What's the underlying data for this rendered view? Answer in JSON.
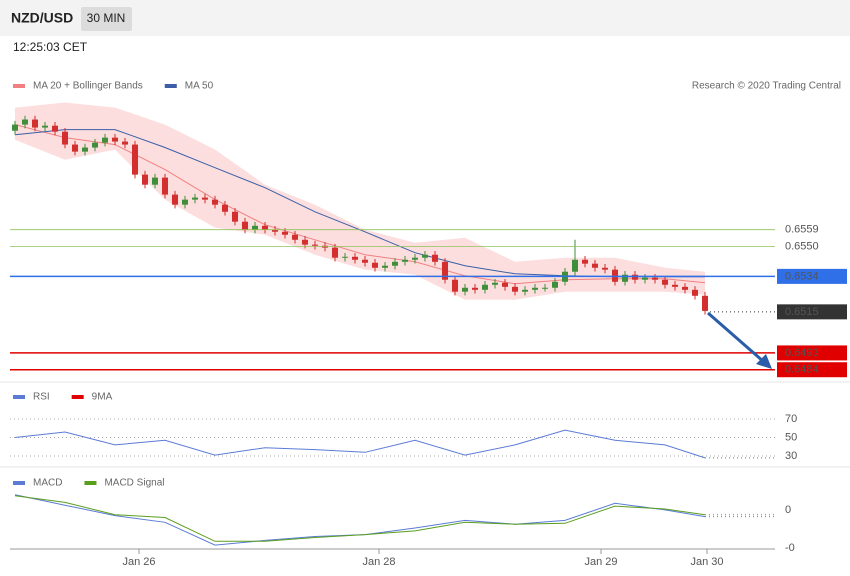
{
  "header": {
    "title": "NZD/USD",
    "timeframe": "30 MIN",
    "time": "12:25:03 CET",
    "source": "Research © 2020 Trading Central"
  },
  "chart_data": [
    {
      "type": "candlestick",
      "xlim": [
        -0.5,
        76
      ],
      "ylim": [
        0.64785,
        0.6629
      ],
      "xticks": [
        {
          "value": 12.4,
          "label": "Jan 26"
        },
        {
          "value": 36.4,
          "label": "Jan 28"
        },
        {
          "value": 58.6,
          "label": "Jan 29"
        },
        {
          "value": 69.2,
          "label": "Jan 30"
        }
      ],
      "up_color": "#3f8f3a",
      "down_color": "#d32f2f",
      "candles": [
        [
          0.6612,
          0.66173,
          0.661,
          0.66153
        ],
        [
          0.66153,
          0.662,
          0.66133,
          0.6618
        ],
        [
          0.6618,
          0.662,
          0.66117,
          0.66137
        ],
        [
          0.66137,
          0.66167,
          0.66117,
          0.66147
        ],
        [
          0.66147,
          0.66167,
          0.66095,
          0.66115
        ],
        [
          0.66115,
          0.66135,
          0.66026,
          0.66046
        ],
        [
          0.66046,
          0.66066,
          0.65988,
          0.66008
        ],
        [
          0.66008,
          0.6605,
          0.65988,
          0.6603
        ],
        [
          0.6603,
          0.66076,
          0.6601,
          0.66056
        ],
        [
          0.66056,
          0.66103,
          0.66036,
          0.66083
        ],
        [
          0.66083,
          0.66103,
          0.66042,
          0.66062
        ],
        [
          0.66062,
          0.66082,
          0.66026,
          0.66046
        ],
        [
          0.66046,
          0.66066,
          0.65865,
          0.65885
        ],
        [
          0.65885,
          0.65905,
          0.65811,
          0.65831
        ],
        [
          0.65831,
          0.65889,
          0.65811,
          0.65869
        ],
        [
          0.65869,
          0.65889,
          0.65758,
          0.65778
        ],
        [
          0.65778,
          0.65798,
          0.65704,
          0.65724
        ],
        [
          0.65724,
          0.65771,
          0.65704,
          0.65751
        ],
        [
          0.65751,
          0.65782,
          0.65731,
          0.65762
        ],
        [
          0.65762,
          0.65782,
          0.65731,
          0.65751
        ],
        [
          0.65751,
          0.65771,
          0.65704,
          0.65724
        ],
        [
          0.65724,
          0.65744,
          0.65666,
          0.65686
        ],
        [
          0.65686,
          0.65706,
          0.65613,
          0.65633
        ],
        [
          0.65633,
          0.65653,
          0.6557,
          0.6559
        ],
        [
          0.6559,
          0.65631,
          0.6557,
          0.65611
        ],
        [
          0.65611,
          0.65631,
          0.6557,
          0.6559
        ],
        [
          0.6559,
          0.6561,
          0.65559,
          0.65579
        ],
        [
          0.65579,
          0.65599,
          0.65543,
          0.65563
        ],
        [
          0.65563,
          0.65583,
          0.65516,
          0.65536
        ],
        [
          0.65536,
          0.65556,
          0.6549,
          0.6551
        ],
        [
          0.6551,
          0.6553,
          0.65484,
          0.65504
        ],
        [
          0.65504,
          0.65524,
          0.65474,
          0.65494
        ],
        [
          0.65494,
          0.65514,
          0.6542,
          0.6544
        ],
        [
          0.6544,
          0.65465,
          0.6542,
          0.65445
        ],
        [
          0.65445,
          0.65465,
          0.65409,
          0.65429
        ],
        [
          0.65429,
          0.65449,
          0.65393,
          0.65413
        ],
        [
          0.65413,
          0.65433,
          0.65366,
          0.65386
        ],
        [
          0.65386,
          0.65417,
          0.65366,
          0.65397
        ],
        [
          0.65397,
          0.65438,
          0.65377,
          0.65418
        ],
        [
          0.65418,
          0.65449,
          0.65398,
          0.65429
        ],
        [
          0.65429,
          0.6546,
          0.65409,
          0.6544
        ],
        [
          0.6544,
          0.65476,
          0.6542,
          0.65456
        ],
        [
          0.65456,
          0.65476,
          0.65398,
          0.65418
        ],
        [
          0.65418,
          0.65438,
          0.65302,
          0.65322
        ],
        [
          0.65322,
          0.65342,
          0.65238,
          0.65258
        ],
        [
          0.65258,
          0.65299,
          0.65238,
          0.65279
        ],
        [
          0.65279,
          0.65299,
          0.65248,
          0.65268
        ],
        [
          0.65268,
          0.65315,
          0.65248,
          0.65295
        ],
        [
          0.65295,
          0.65326,
          0.65275,
          0.65306
        ],
        [
          0.65306,
          0.65326,
          0.65264,
          0.65284
        ],
        [
          0.65284,
          0.65304,
          0.65238,
          0.65258
        ],
        [
          0.65258,
          0.65288,
          0.65238,
          0.65268
        ],
        [
          0.65268,
          0.65299,
          0.65248,
          0.65279
        ],
        [
          0.65279,
          0.65299,
          0.65259,
          0.65279
        ],
        [
          0.65279,
          0.65331,
          0.65259,
          0.65311
        ],
        [
          0.65311,
          0.65385,
          0.65291,
          0.65365
        ],
        [
          0.65365,
          0.65536,
          0.65345,
          0.65429
        ],
        [
          0.65429,
          0.65449,
          0.65388,
          0.65408
        ],
        [
          0.65408,
          0.65428,
          0.65366,
          0.65386
        ],
        [
          0.65386,
          0.65406,
          0.65356,
          0.65376
        ],
        [
          0.65376,
          0.65396,
          0.65291,
          0.65311
        ],
        [
          0.65311,
          0.65369,
          0.65291,
          0.65349
        ],
        [
          0.65349,
          0.65369,
          0.65302,
          0.65322
        ],
        [
          0.65322,
          0.65353,
          0.65302,
          0.65333
        ],
        [
          0.65333,
          0.65353,
          0.65302,
          0.65322
        ],
        [
          0.65322,
          0.65342,
          0.65275,
          0.65295
        ],
        [
          0.65295,
          0.65315,
          0.65264,
          0.65284
        ],
        [
          0.65284,
          0.65304,
          0.65248,
          0.65268
        ],
        [
          0.65268,
          0.65288,
          0.65216,
          0.65236
        ],
        [
          0.65236,
          0.65256,
          0.65135,
          0.65155
        ]
      ],
      "x": [
        0,
        5,
        10,
        15,
        20,
        25,
        30,
        35,
        40,
        45,
        50,
        55,
        60,
        65,
        69
      ],
      "series": [
        {
          "name": "MA 20 + Bollinger Bands",
          "color": "#f08080",
          "band_color": "#fbd0d0",
          "values": [
            0.66153,
            0.66083,
            0.66046,
            0.65912,
            0.65751,
            0.65617,
            0.65536,
            0.65456,
            0.65418,
            0.65343,
            0.65301,
            0.65322,
            0.65327,
            0.65327,
            0.65306
          ],
          "upper": [
            0.66244,
            0.66271,
            0.66244,
            0.66153,
            0.66019,
            0.65831,
            0.65724,
            0.6559,
            0.6552,
            0.65547,
            0.65418,
            0.6544,
            0.6544,
            0.65386,
            0.65365
          ],
          "lower": [
            0.66072,
            0.65965,
            0.66019,
            0.65751,
            0.65601,
            0.65563,
            0.65456,
            0.65376,
            0.65349,
            0.65215,
            0.65215,
            0.65258,
            0.65258,
            0.65258,
            0.65242
          ]
        },
        {
          "name": "MA 50",
          "color": "#3a5fa8",
          "values": [
            0.66099,
            0.66126,
            0.66126,
            0.6603,
            0.65922,
            0.65815,
            0.65686,
            0.65579,
            0.65467,
            0.65397,
            0.65354,
            0.65343,
            0.65338,
            0.65338,
            0.65338
          ]
        }
      ],
      "levels": [
        {
          "value": 0.6559,
          "color": "#8fc25a",
          "boxed": false,
          "line": "solid"
        },
        {
          "value": 0.655,
          "label": "0.6550",
          "color": "#8fc25a",
          "boxed": false,
          "line": "solid"
        },
        {
          "value": 0.6534,
          "color": "#2f6fe8",
          "boxed": true,
          "line": "solid"
        },
        {
          "value": 0.6515,
          "color": "#333333",
          "boxed": true,
          "line": "dotted"
        },
        {
          "value": 0.6493,
          "color": "#e00000",
          "boxed": true,
          "line": "solid"
        },
        {
          "value": 0.6484,
          "color": "#e00000",
          "boxed": true,
          "line": "solid"
        }
      ]
    },
    {
      "type": "line",
      "xlim": [
        -0.5,
        76
      ],
      "ylim": [
        20,
        90
      ],
      "yticks": [
        30,
        50,
        70
      ],
      "grid": true,
      "x": [
        0,
        5,
        10,
        15,
        20,
        25,
        30,
        35,
        40,
        45,
        50,
        55,
        60,
        65,
        69
      ],
      "series": [
        {
          "name": "RSI",
          "color": "#5b7bd5",
          "values": [
            50,
            56,
            42,
            47,
            31,
            39,
            37,
            34,
            47,
            31,
            42,
            58,
            47,
            42,
            28
          ]
        },
        {
          "name": "9MA",
          "color": "#e00000",
          "values": [
            null,
            null,
            null,
            null,
            null,
            null,
            null,
            null,
            null,
            null,
            null,
            null,
            null,
            null,
            null
          ]
        }
      ]
    },
    {
      "type": "line",
      "xlim": [
        -0.5,
        76
      ],
      "ylim": [
        -0.00044,
        0.00021
      ],
      "yticks": [
        0,
        {
          "value": -0.0004,
          "label": "-0"
        }
      ],
      "grid": false,
      "x": [
        0,
        5,
        10,
        15,
        20,
        25,
        30,
        35,
        40,
        45,
        50,
        55,
        60,
        65,
        69
      ],
      "series": [
        {
          "name": "MACD",
          "color": "#5b7bd5",
          "values": [
            0.00016,
            5e-05,
            -6e-05,
            -0.00013,
            -0.00037,
            -0.00032,
            -0.00028,
            -0.00026,
            -0.00019,
            -0.00011,
            -0.00015,
            -0.00011,
            7e-05,
            0,
            -7e-05
          ]
        },
        {
          "name": "MACD Signal",
          "color": "#5a9e1e",
          "values": [
            0.00015,
            8e-05,
            -5e-05,
            -8e-05,
            -0.00033,
            -0.00033,
            -0.00029,
            -0.00026,
            -0.00022,
            -0.00013,
            -0.00015,
            -0.00014,
            4e-05,
            1e-05,
            -5e-05
          ]
        }
      ]
    }
  ]
}
